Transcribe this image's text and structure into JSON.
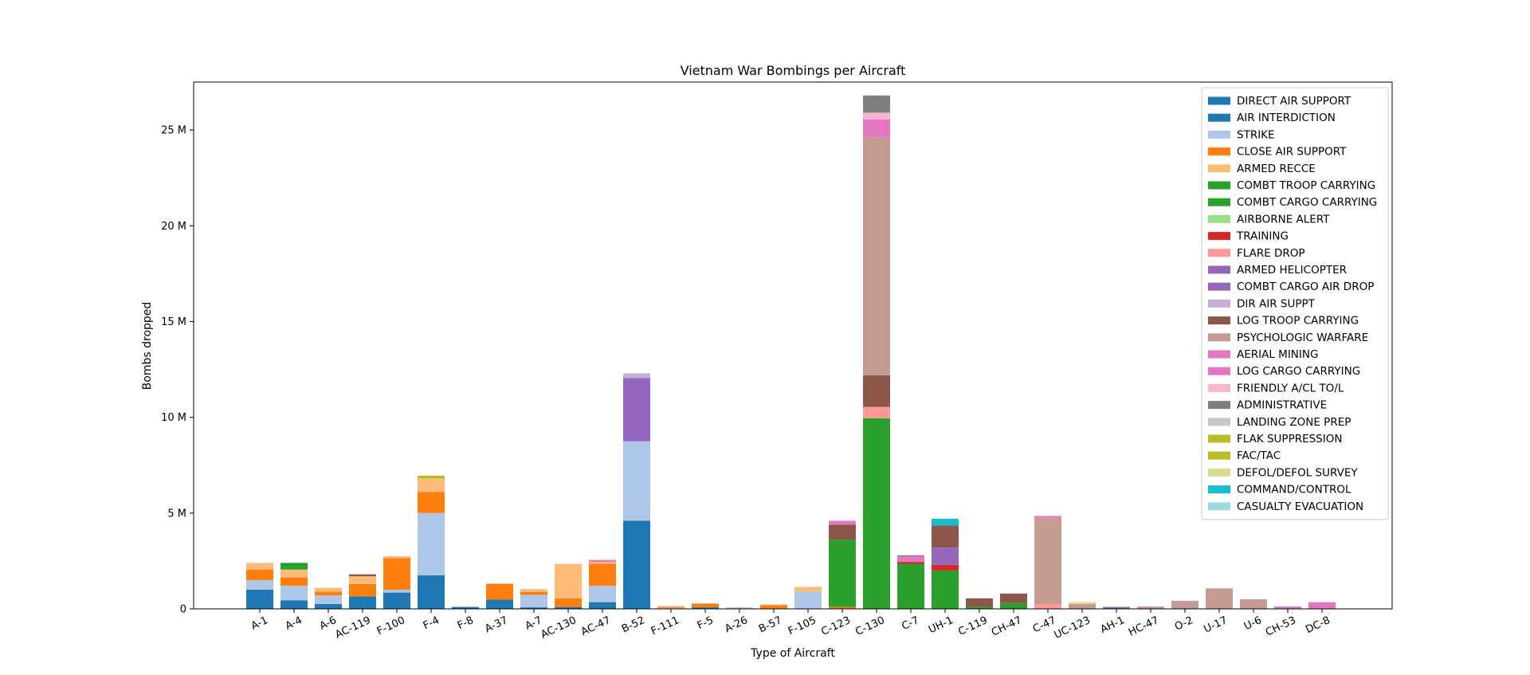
{
  "chart_data": {
    "type": "bar",
    "stacked": true,
    "title": "Vietnam War Bombings per Aircraft",
    "xlabel": "Type of Aircraft",
    "ylabel": "Bombs dropped",
    "ylim": [
      0,
      27500000
    ],
    "yticks": [
      {
        "value": 0,
        "label": "0"
      },
      {
        "value": 5000000,
        "label": "5 M"
      },
      {
        "value": 10000000,
        "label": "10 M"
      },
      {
        "value": 15000000,
        "label": "15 M"
      },
      {
        "value": 20000000,
        "label": "20 M"
      },
      {
        "value": 25000000,
        "label": "25 M"
      }
    ],
    "grid": false,
    "legend_position": "top-right",
    "categories": [
      "A-1",
      "A-4",
      "A-6",
      "AC-119",
      "F-100",
      "F-4",
      "F-8",
      "A-37",
      "A-7",
      "AC-130",
      "AC-47",
      "B-52",
      "F-111",
      "F-5",
      "A-26",
      "B-57",
      "F-105",
      "C-123",
      "C-130",
      "C-7",
      "UH-1",
      "C-119",
      "CH-47",
      "C-47",
      "UC-123",
      "AH-1",
      "HC-47",
      "O-2",
      "U-17",
      "U-6",
      "CH-53",
      "DC-8"
    ],
    "series": [
      {
        "name": "DIRECT AIR SUPPORT",
        "color": "#1f77b4",
        "values": [
          0,
          0,
          0,
          0,
          0,
          0,
          0,
          0,
          0,
          0,
          0,
          0,
          0,
          0,
          0,
          0,
          0,
          0,
          0,
          0,
          0,
          0,
          0,
          0,
          0,
          0,
          0,
          0,
          0,
          0,
          0,
          0
        ]
      },
      {
        "name": "AIR INTERDICTION",
        "color": "#1f77b4",
        "values": [
          1000000,
          450000,
          250000,
          650000,
          850000,
          1750000,
          100000,
          480000,
          80000,
          100000,
          350000,
          4600000,
          20000,
          80000,
          30000,
          20000,
          0,
          0,
          0,
          0,
          0,
          0,
          0,
          0,
          0,
          0,
          0,
          0,
          0,
          0,
          0,
          0
        ]
      },
      {
        "name": "STRIKE",
        "color": "#aec7e8",
        "values": [
          500000,
          750000,
          450000,
          0,
          150000,
          3250000,
          0,
          0,
          650000,
          0,
          850000,
          4150000,
          30000,
          0,
          50000,
          0,
          900000,
          0,
          0,
          0,
          0,
          0,
          0,
          0,
          0,
          0,
          0,
          0,
          0,
          0,
          0,
          0
        ]
      },
      {
        "name": "CLOSE AIR SUPPORT",
        "color": "#ff7f0e",
        "values": [
          550000,
          450000,
          200000,
          650000,
          1650000,
          1100000,
          0,
          830000,
          150000,
          450000,
          1150000,
          0,
          50000,
          200000,
          0,
          170000,
          0,
          100000,
          0,
          0,
          0,
          0,
          0,
          0,
          0,
          0,
          0,
          0,
          0,
          0,
          0,
          0
        ]
      },
      {
        "name": "ARMED RECCE",
        "color": "#ffbb78",
        "values": [
          350000,
          400000,
          200000,
          400000,
          100000,
          700000,
          0,
          0,
          150000,
          1800000,
          100000,
          0,
          50000,
          0,
          0,
          40000,
          250000,
          0,
          0,
          0,
          0,
          0,
          0,
          0,
          0,
          0,
          0,
          0,
          0,
          0,
          0,
          0
        ]
      },
      {
        "name": "COMBT TROOP CARRYING",
        "color": "#2ca02c",
        "values": [
          0,
          350000,
          0,
          0,
          0,
          0,
          0,
          0,
          0,
          0,
          0,
          0,
          0,
          0,
          0,
          0,
          0,
          3500000,
          9950000,
          2350000,
          2000000,
          100000,
          300000,
          0,
          0,
          0,
          0,
          0,
          0,
          0,
          0,
          0
        ]
      },
      {
        "name": "COMBT CARGO CARRYING",
        "color": "#2ca02c",
        "values": [
          0,
          0,
          0,
          0,
          0,
          0,
          0,
          0,
          0,
          0,
          0,
          0,
          0,
          0,
          0,
          0,
          0,
          0,
          0,
          0,
          0,
          0,
          0,
          0,
          0,
          0,
          0,
          0,
          0,
          0,
          0,
          0
        ]
      },
      {
        "name": "AIRBORNE ALERT",
        "color": "#98df8a",
        "values": [
          0,
          0,
          0,
          0,
          0,
          0,
          0,
          0,
          0,
          0,
          0,
          0,
          0,
          0,
          0,
          0,
          0,
          0,
          0,
          0,
          0,
          0,
          0,
          0,
          0,
          0,
          0,
          0,
          0,
          0,
          0,
          0
        ]
      },
      {
        "name": "TRAINING",
        "color": "#d62728",
        "values": [
          0,
          0,
          0,
          0,
          0,
          0,
          0,
          0,
          0,
          0,
          0,
          0,
          0,
          0,
          0,
          0,
          0,
          0,
          0,
          100000,
          300000,
          0,
          0,
          0,
          0,
          0,
          0,
          0,
          0,
          0,
          0,
          0
        ]
      },
      {
        "name": "FLARE DROP",
        "color": "#ff9896",
        "values": [
          0,
          0,
          0,
          0,
          0,
          0,
          0,
          0,
          0,
          0,
          0,
          0,
          0,
          0,
          0,
          0,
          0,
          0,
          600000,
          0,
          0,
          0,
          0,
          250000,
          0,
          0,
          0,
          0,
          0,
          0,
          0,
          0
        ]
      },
      {
        "name": "ARMED HELICOPTER",
        "color": "#9467bd",
        "values": [
          0,
          0,
          0,
          0,
          0,
          0,
          0,
          0,
          0,
          0,
          0,
          3300000,
          0,
          0,
          0,
          0,
          0,
          0,
          0,
          0,
          900000,
          0,
          0,
          0,
          0,
          100000,
          0,
          0,
          0,
          0,
          0,
          0
        ]
      },
      {
        "name": "COMBT CARGO AIR  DROP",
        "color": "#9467bd",
        "values": [
          0,
          0,
          0,
          0,
          0,
          0,
          0,
          0,
          0,
          0,
          0,
          0,
          0,
          0,
          0,
          0,
          0,
          0,
          0,
          0,
          0,
          0,
          0,
          0,
          0,
          0,
          0,
          0,
          0,
          0,
          0,
          0
        ]
      },
      {
        "name": "DIR AIR SUPPT",
        "color": "#c5b0d5",
        "values": [
          0,
          0,
          0,
          0,
          0,
          0,
          0,
          0,
          0,
          0,
          0,
          250000,
          0,
          0,
          0,
          0,
          0,
          0,
          0,
          0,
          0,
          0,
          0,
          0,
          0,
          0,
          0,
          0,
          0,
          0,
          0,
          0
        ]
      },
      {
        "name": "LOG TROOP CARRYING",
        "color": "#8c564b",
        "values": [
          0,
          0,
          0,
          100000,
          0,
          0,
          0,
          0,
          0,
          0,
          0,
          0,
          0,
          0,
          0,
          0,
          0,
          800000,
          1650000,
          0,
          1150000,
          450000,
          500000,
          0,
          0,
          0,
          0,
          0,
          0,
          0,
          0,
          0
        ]
      },
      {
        "name": "PSYCHOLOGIC WARFARE",
        "color": "#c49c94",
        "values": [
          0,
          0,
          0,
          0,
          0,
          0,
          0,
          0,
          0,
          0,
          0,
          0,
          0,
          0,
          0,
          0,
          0,
          0,
          12400000,
          0,
          0,
          0,
          0,
          4500000,
          250000,
          0,
          120000,
          420000,
          1070000,
          500000,
          0,
          0
        ]
      },
      {
        "name": "AERIAL MINING",
        "color": "#e377c2",
        "values": [
          0,
          0,
          0,
          0,
          0,
          0,
          0,
          0,
          0,
          0,
          0,
          0,
          0,
          0,
          0,
          0,
          0,
          0,
          0,
          0,
          0,
          0,
          0,
          0,
          0,
          0,
          0,
          0,
          0,
          0,
          0,
          0
        ]
      },
      {
        "name": "LOG CARGO CARRYING",
        "color": "#e377c2",
        "values": [
          0,
          0,
          0,
          0,
          0,
          0,
          0,
          0,
          0,
          0,
          100000,
          0,
          0,
          0,
          0,
          0,
          0,
          200000,
          950000,
          300000,
          0,
          0,
          0,
          100000,
          0,
          0,
          0,
          0,
          0,
          0,
          120000,
          350000
        ]
      },
      {
        "name": "FRIENDLY A/CL TO/L",
        "color": "#f7b6d2",
        "values": [
          0,
          0,
          0,
          0,
          0,
          0,
          0,
          0,
          0,
          0,
          0,
          0,
          0,
          0,
          0,
          0,
          0,
          0,
          350000,
          0,
          0,
          0,
          0,
          0,
          0,
          0,
          0,
          0,
          0,
          0,
          0,
          0
        ]
      },
      {
        "name": "ADMINISTRATIVE",
        "color": "#7f7f7f",
        "values": [
          0,
          0,
          0,
          0,
          0,
          0,
          0,
          0,
          0,
          0,
          0,
          0,
          0,
          0,
          0,
          0,
          0,
          0,
          900000,
          50000,
          0,
          0,
          0,
          0,
          0,
          0,
          0,
          0,
          0,
          0,
          0,
          0
        ]
      },
      {
        "name": "LANDING ZONE PREP",
        "color": "#c7c7c7",
        "values": [
          0,
          0,
          0,
          0,
          0,
          0,
          0,
          0,
          0,
          0,
          0,
          0,
          0,
          0,
          0,
          0,
          0,
          0,
          0,
          0,
          0,
          0,
          0,
          0,
          0,
          0,
          0,
          0,
          0,
          0,
          0,
          0
        ]
      },
      {
        "name": "FLAK SUPPRESSION",
        "color": "#bcbd22",
        "values": [
          0,
          0,
          0,
          0,
          0,
          0,
          0,
          0,
          0,
          0,
          0,
          0,
          0,
          0,
          0,
          0,
          0,
          0,
          0,
          0,
          0,
          0,
          0,
          0,
          0,
          0,
          0,
          0,
          0,
          0,
          0,
          0
        ]
      },
      {
        "name": "FAC/TAC",
        "color": "#bcbd22",
        "values": [
          0,
          0,
          0,
          0,
          0,
          150000,
          0,
          0,
          0,
          0,
          0,
          0,
          0,
          0,
          0,
          0,
          0,
          0,
          0,
          0,
          0,
          0,
          0,
          0,
          0,
          0,
          0,
          0,
          0,
          0,
          0,
          0
        ]
      },
      {
        "name": "DEFOL/DEFOL SURVEY",
        "color": "#dbdb8d",
        "values": [
          0,
          0,
          0,
          0,
          0,
          0,
          0,
          0,
          0,
          0,
          0,
          0,
          0,
          0,
          0,
          0,
          0,
          0,
          0,
          0,
          0,
          0,
          0,
          0,
          100000,
          0,
          0,
          0,
          0,
          0,
          0,
          0
        ]
      },
      {
        "name": "COMMAND/CONTROL",
        "color": "#17becf",
        "values": [
          0,
          0,
          0,
          0,
          0,
          0,
          0,
          0,
          0,
          0,
          0,
          0,
          0,
          0,
          0,
          0,
          0,
          0,
          0,
          0,
          350000,
          0,
          0,
          0,
          0,
          0,
          0,
          0,
          0,
          0,
          0,
          0
        ]
      },
      {
        "name": "CASUALTY EVACUATION",
        "color": "#9edae5",
        "values": [
          0,
          0,
          0,
          0,
          0,
          0,
          0,
          0,
          0,
          0,
          0,
          0,
          0,
          0,
          0,
          0,
          0,
          0,
          0,
          0,
          0,
          0,
          0,
          0,
          0,
          0,
          0,
          0,
          0,
          0,
          0,
          0
        ]
      }
    ]
  }
}
